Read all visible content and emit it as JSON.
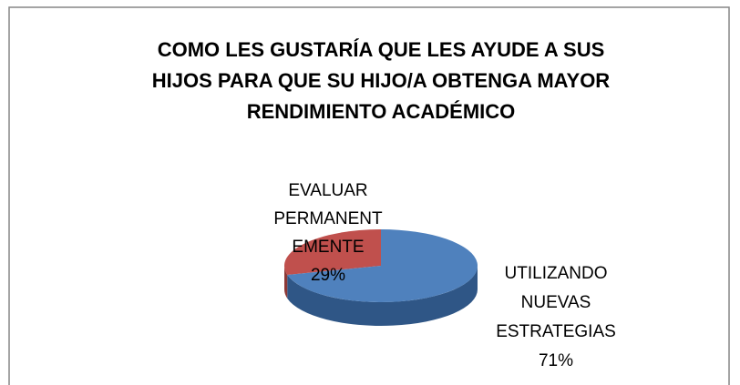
{
  "chart_data": {
    "type": "pie",
    "title": "COMO LES GUSTARÍA QUE LES AYUDE A SUS HIJOS PARA QUE SU HIJO/A OBTENGA MAYOR RENDIMIENTO ACADÉMICO",
    "categories": [
      "EVALUAR PERMANENTEMENTE",
      "UTILIZANDO NUEVAS ESTRATEGIAS"
    ],
    "values": [
      29,
      71
    ],
    "value_labels": [
      "29%",
      "71%"
    ],
    "colors": [
      "#c0504d",
      "#4f81bd"
    ],
    "side_colors": [
      "#8c3836",
      "#2f5686"
    ]
  }
}
